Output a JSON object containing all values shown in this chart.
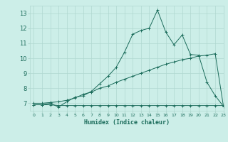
{
  "title": "",
  "xlabel": "Humidex (Indice chaleur)",
  "bg_color": "#cceee8",
  "grid_color": "#b0d8d0",
  "line_color": "#1a6b5a",
  "xlim": [
    -0.5,
    23
  ],
  "ylim": [
    6.5,
    13.5
  ],
  "xticks": [
    0,
    1,
    2,
    3,
    4,
    5,
    6,
    7,
    8,
    9,
    10,
    11,
    12,
    13,
    14,
    15,
    16,
    17,
    18,
    19,
    20,
    21,
    22,
    23
  ],
  "yticks": [
    7,
    8,
    9,
    10,
    11,
    12,
    13
  ],
  "line1_x": [
    0,
    1,
    2,
    3,
    4,
    5,
    6,
    7,
    8,
    9,
    10,
    11,
    12,
    13,
    14,
    15,
    16,
    17,
    18,
    19,
    20,
    21,
    22,
    23
  ],
  "line1_y": [
    6.9,
    6.9,
    6.9,
    6.85,
    6.85,
    6.85,
    6.85,
    6.85,
    6.85,
    6.85,
    6.85,
    6.85,
    6.85,
    6.85,
    6.85,
    6.85,
    6.85,
    6.85,
    6.85,
    6.85,
    6.85,
    6.85,
    6.85,
    6.85
  ],
  "line2_x": [
    0,
    1,
    2,
    3,
    4,
    5,
    6,
    7,
    8,
    9,
    10,
    11,
    12,
    13,
    14,
    15,
    16,
    17,
    18,
    19,
    20,
    21,
    22,
    23
  ],
  "line2_y": [
    7.0,
    7.0,
    7.05,
    7.1,
    7.2,
    7.35,
    7.6,
    7.75,
    8.0,
    8.15,
    8.4,
    8.6,
    8.8,
    9.0,
    9.2,
    9.4,
    9.6,
    9.75,
    9.9,
    10.0,
    10.15,
    10.2,
    10.3,
    6.8
  ],
  "line3_x": [
    0,
    1,
    2,
    3,
    4,
    5,
    6,
    7,
    8,
    9,
    10,
    11,
    12,
    13,
    14,
    15,
    16,
    17,
    18,
    19,
    20,
    21,
    22,
    23
  ],
  "line3_y": [
    6.9,
    6.9,
    7.0,
    6.75,
    7.1,
    7.4,
    7.5,
    7.8,
    8.3,
    8.8,
    9.4,
    10.4,
    11.6,
    11.85,
    12.0,
    13.2,
    11.75,
    10.9,
    11.55,
    10.25,
    10.2,
    8.4,
    7.5,
    6.8
  ]
}
